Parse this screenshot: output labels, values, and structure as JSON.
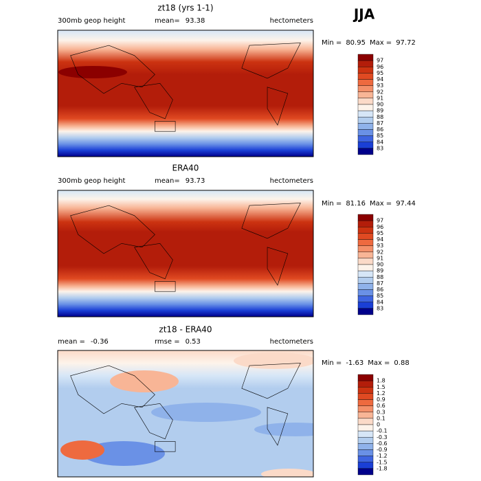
{
  "figure_label": "JJA",
  "panels": [
    {
      "title": "zt18 (yrs 1-1)",
      "header": [
        {
          "text": "300mb geop height"
        },
        {
          "label": "mean=",
          "value": 93.38
        },
        {
          "text": "hectometers"
        }
      ],
      "min_label": "Min =",
      "min": 80.95,
      "max_label": "Max =",
      "max": 97.72,
      "colorbar": {
        "labels": [
          97,
          96,
          95,
          94,
          93,
          92,
          91,
          90,
          89,
          88,
          87,
          86,
          85,
          84,
          83
        ],
        "colors": [
          "#8b0000",
          "#b31d0a",
          "#cc3311",
          "#e04a22",
          "#ee6a3f",
          "#f4906a",
          "#f8b596",
          "#fbdac8",
          "#fdf3ea",
          "#d6e6f7",
          "#b2cdee",
          "#8fb2ea",
          "#6a91e6",
          "#3e64e0",
          "#1a3fd6",
          "#00008b"
        ]
      }
    },
    {
      "title": "ERA40",
      "header": [
        {
          "text": "300mb geop height"
        },
        {
          "label": "mean=",
          "value": 93.73
        },
        {
          "text": "hectometers"
        }
      ],
      "min_label": "Min =",
      "min": 81.16,
      "max_label": "Max =",
      "max": 97.44,
      "colorbar": {
        "labels": [
          97,
          96,
          95,
          94,
          93,
          92,
          91,
          90,
          89,
          88,
          87,
          86,
          85,
          84,
          83
        ],
        "colors": [
          "#8b0000",
          "#b31d0a",
          "#cc3311",
          "#e04a22",
          "#ee6a3f",
          "#f4906a",
          "#f8b596",
          "#fbdac8",
          "#fdf3ea",
          "#d6e6f7",
          "#b2cdee",
          "#8fb2ea",
          "#6a91e6",
          "#3e64e0",
          "#1a3fd6",
          "#00008b"
        ]
      }
    },
    {
      "title": "zt18 - ERA40",
      "header": [
        {
          "label": "mean =",
          "value": -0.36
        },
        {
          "label": "rmse =",
          "value": 0.53
        },
        {
          "text": "hectometers"
        }
      ],
      "min_label": "Min =",
      "min": -1.63,
      "max_label": "Max =",
      "max": 0.88,
      "colorbar": {
        "labels": [
          1.8,
          1.5,
          1.2,
          0.9,
          0.6,
          0.3,
          0.1,
          0,
          -0.1,
          -0.3,
          -0.6,
          -0.9,
          -1.2,
          -1.5,
          -1.8
        ],
        "colors": [
          "#8b0000",
          "#b31d0a",
          "#cc3311",
          "#e04a22",
          "#ee6a3f",
          "#f4906a",
          "#f8b596",
          "#fbdac8",
          "#fdf3ea",
          "#d6e6f7",
          "#b2cdee",
          "#8fb2ea",
          "#6a91e6",
          "#3e64e0",
          "#1a3fd6",
          "#00008b"
        ]
      }
    }
  ]
}
